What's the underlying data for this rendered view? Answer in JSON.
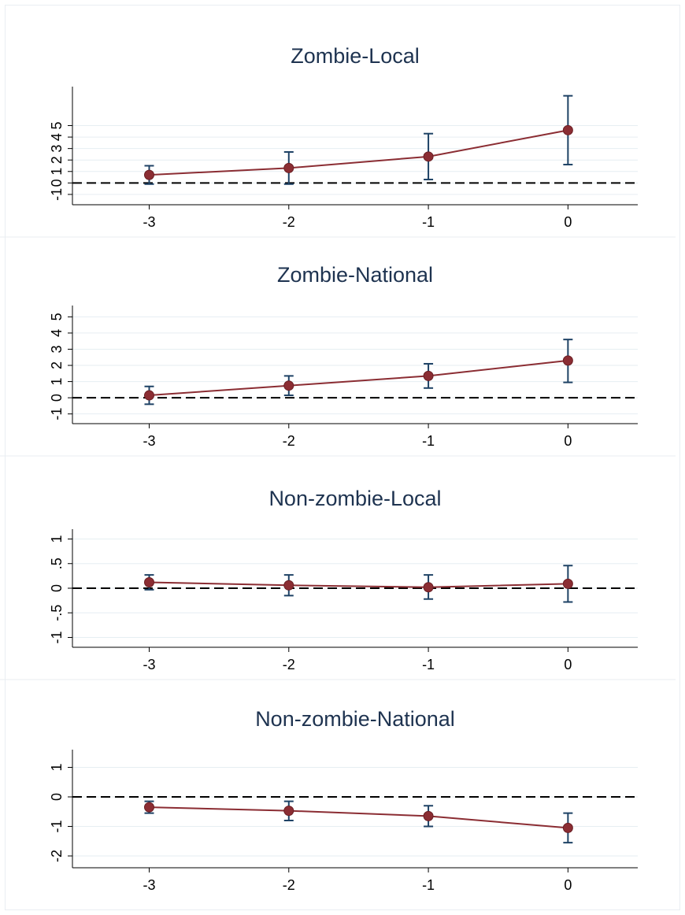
{
  "colors": {
    "series": "#8b2d33",
    "marker": "#8b2d33",
    "errorbar": "#1e4265",
    "title": "#1e3350",
    "grid": "#e6eef2",
    "refline": "#000000",
    "panel_border": "#e9eef2"
  },
  "chart_data": [
    {
      "type": "line",
      "title": "Zombie-Local",
      "xlabel": "",
      "ylabel": "",
      "x": [
        -3,
        -2,
        -1,
        0
      ],
      "xticks": [
        "-3",
        "-2",
        "-1",
        "0"
      ],
      "xlim": [
        -3.55,
        0.5
      ],
      "yticks": [
        -1,
        0,
        1,
        2,
        3,
        4,
        5
      ],
      "ytick_labels": [
        "-1",
        "0",
        "1",
        "2",
        "3",
        "4",
        "5"
      ],
      "ylim": [
        -1.9,
        8.4
      ],
      "grid": true,
      "reference_line": 0,
      "series": [
        {
          "values": [
            0.7,
            1.3,
            2.3,
            4.6
          ],
          "ci_low": [
            -0.1,
            -0.1,
            0.3,
            1.6
          ],
          "ci_high": [
            1.5,
            2.7,
            4.3,
            7.6
          ]
        }
      ]
    },
    {
      "type": "line",
      "title": "Zombie-National",
      "xlabel": "",
      "ylabel": "",
      "x": [
        -3,
        -2,
        -1,
        0
      ],
      "xticks": [
        "-3",
        "-2",
        "-1",
        "0"
      ],
      "xlim": [
        -3.55,
        0.5
      ],
      "yticks": [
        -1,
        0,
        1,
        2,
        3,
        4,
        5
      ],
      "ytick_labels": [
        "-1",
        "0",
        "1",
        "2",
        "3",
        "4",
        "5"
      ],
      "ylim": [
        -1.6,
        5.7
      ],
      "grid": true,
      "reference_line": 0,
      "series": [
        {
          "values": [
            0.15,
            0.75,
            1.35,
            2.3
          ],
          "ci_low": [
            -0.4,
            0.15,
            0.6,
            0.95
          ],
          "ci_high": [
            0.7,
            1.35,
            2.1,
            3.6
          ]
        }
      ]
    },
    {
      "type": "line",
      "title": "Non-zombie-Local",
      "xlabel": "",
      "ylabel": "",
      "x": [
        -3,
        -2,
        -1,
        0
      ],
      "xticks": [
        "-3",
        "-2",
        "-1",
        "0"
      ],
      "xlim": [
        -3.55,
        0.5
      ],
      "yticks": [
        -1,
        -0.5,
        0,
        0.5,
        1
      ],
      "ytick_labels": [
        "-1",
        "-.5",
        "0",
        ".5",
        "1"
      ],
      "ylim": [
        -1.2,
        1.2
      ],
      "grid": true,
      "reference_line": 0,
      "series": [
        {
          "values": [
            0.12,
            0.06,
            0.02,
            0.09
          ],
          "ci_low": [
            -0.03,
            -0.15,
            -0.22,
            -0.28
          ],
          "ci_high": [
            0.27,
            0.27,
            0.27,
            0.46
          ]
        }
      ]
    },
    {
      "type": "line",
      "title": "Non-zombie-National",
      "xlabel": "",
      "ylabel": "",
      "x": [
        -3,
        -2,
        -1,
        0
      ],
      "xticks": [
        "-3",
        "-2",
        "-1",
        "0"
      ],
      "xlim": [
        -3.55,
        0.5
      ],
      "yticks": [
        -2,
        -1,
        0,
        1
      ],
      "ytick_labels": [
        "-2",
        "-1",
        "0",
        "1"
      ],
      "ylim": [
        -2.4,
        1.6
      ],
      "grid": true,
      "reference_line": 0,
      "series": [
        {
          "values": [
            -0.35,
            -0.47,
            -0.65,
            -1.05
          ],
          "ci_low": [
            -0.55,
            -0.8,
            -1.0,
            -1.55
          ],
          "ci_high": [
            -0.15,
            -0.15,
            -0.3,
            -0.55
          ]
        }
      ]
    }
  ]
}
